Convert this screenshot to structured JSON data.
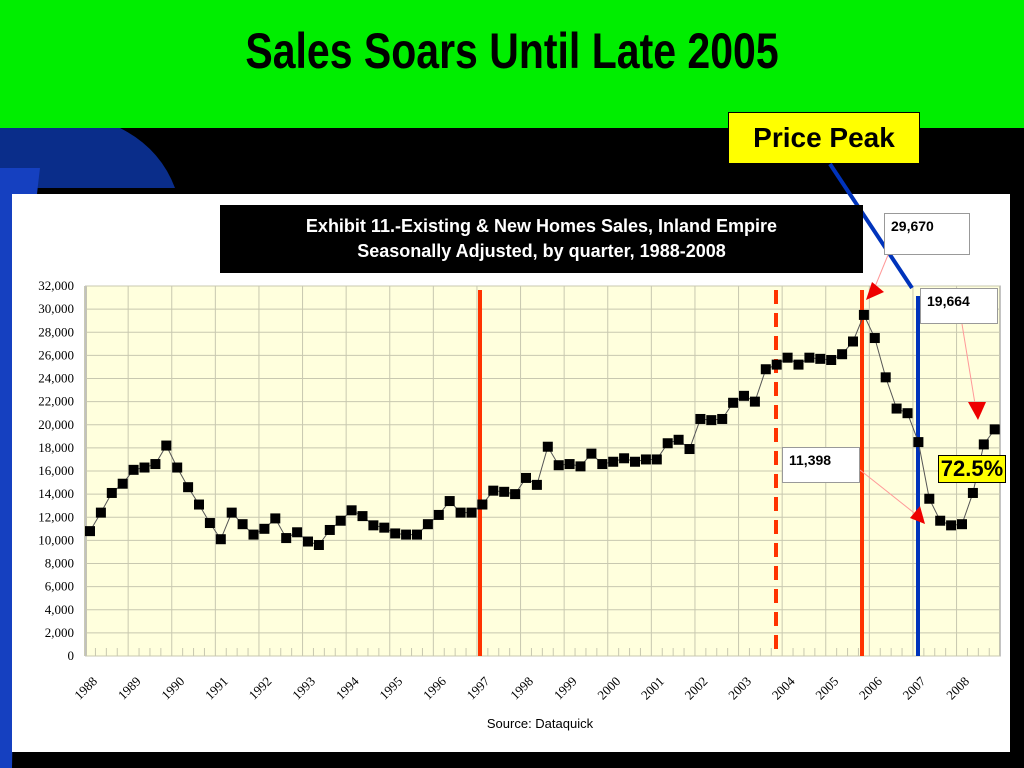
{
  "slide": {
    "title": "Sales Soars Until Late 2005",
    "callout": "Price Peak",
    "exhibit_line1": "Exhibit 11.-Existing & New Homes Sales, Inland Empire",
    "exhibit_line2": "Seasonally Adjusted, by quarter, 1988-2008",
    "source": "Source:  Dataquick",
    "colors": {
      "banner": "#00ee00",
      "plot_bg": "#ffffdd",
      "marker": "#000000",
      "red_line": "#ff3300",
      "blue_line": "#0033bb",
      "callout": "#ffff00"
    }
  },
  "annotations": {
    "peak": "29,670",
    "current": "19,664",
    "trough": "11,398",
    "pct": "72.5%"
  },
  "chart_data": {
    "type": "line",
    "title": "Exhibit 11.-Existing & New Homes Sales, Inland Empire Seasonally Adjusted, by quarter, 1988-2008",
    "xlabel": "",
    "ylabel": "",
    "ylim": [
      0,
      32000
    ],
    "yticks": [
      0,
      2000,
      4000,
      6000,
      8000,
      10000,
      12000,
      14000,
      16000,
      18000,
      20000,
      22000,
      24000,
      26000,
      28000,
      30000,
      32000
    ],
    "ytick_labels": [
      "0",
      "2,000",
      "4,000",
      "6,000",
      "8,000",
      "10,000",
      "12,000",
      "14,000",
      "16,000",
      "18,000",
      "20,000",
      "22,000",
      "24,000",
      "26,000",
      "28,000",
      "30,000",
      "32,000"
    ],
    "x_labels": [
      "1988",
      "1989",
      "1990",
      "1991",
      "1992",
      "1993",
      "1994",
      "1995",
      "1996",
      "1997",
      "1998",
      "1999",
      "2000",
      "2001",
      "2002",
      "2003",
      "2004",
      "2005",
      "2006",
      "2007",
      "2008"
    ],
    "grid": true,
    "series": [
      {
        "values": [
          10800,
          12400,
          14100,
          14900,
          16100,
          16300,
          16600,
          18200,
          16300,
          14600,
          13100,
          11500,
          10100,
          12400,
          11400,
          10500,
          11000,
          11900,
          10200,
          10700,
          9900,
          9600,
          10900,
          11700,
          12600,
          12100,
          11300,
          11100,
          10600,
          10500,
          10500,
          11400,
          12200,
          13400,
          12400,
          12400,
          13100,
          14300,
          14200,
          14000,
          15400,
          14800,
          18100,
          16500,
          16600,
          16400,
          17500,
          16600,
          16800,
          17100,
          16800,
          17000,
          17000,
          18400,
          18700,
          17900,
          20500,
          20400,
          20500,
          21900,
          22500,
          22000,
          24800,
          25200,
          25800,
          25200,
          25800,
          25700,
          25600,
          26100,
          27200,
          29500,
          27500,
          24100,
          21400,
          21000,
          18500,
          13600,
          11700,
          11300,
          11400,
          14100,
          18300,
          19600
        ]
      }
    ],
    "vertical_markers": [
      {
        "position": "1997 Q1",
        "style": "solid",
        "color": "#ff3300"
      },
      {
        "position": "2003 Q4",
        "style": "dashed",
        "color": "#ff3300"
      },
      {
        "position": "2005 Q4",
        "style": "solid",
        "color": "#ff3300"
      },
      {
        "position": "2007 Q1",
        "style": "solid",
        "color": "#0033bb"
      }
    ]
  }
}
